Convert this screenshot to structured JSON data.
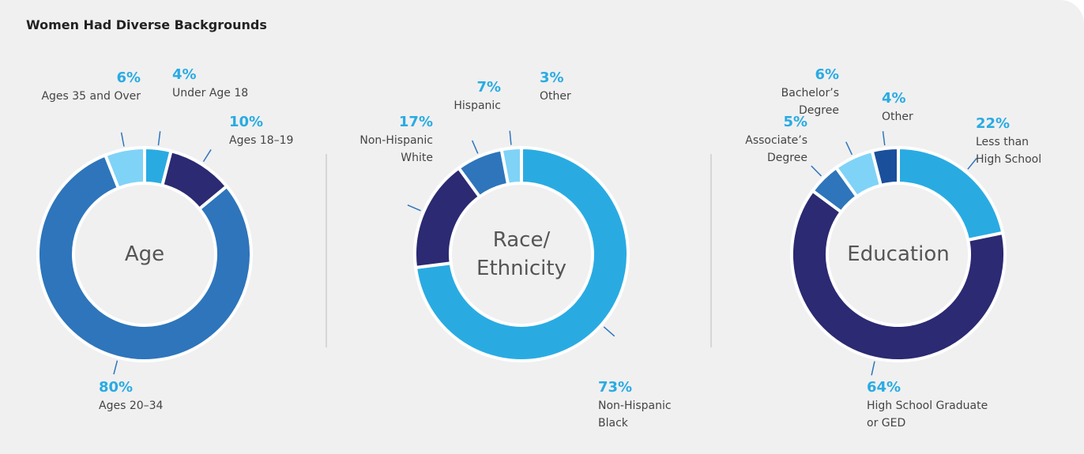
{
  "title": "Women Had Diverse Backgrounds",
  "chart_data": [
    {
      "type": "pie",
      "donut": true,
      "center_label": "Age",
      "categories": [
        "Under Age 18",
        "Ages 18–19",
        "Ages 20–34",
        "Ages 35 and Over"
      ],
      "values": [
        4,
        10,
        80,
        6
      ],
      "value_labels": [
        "4%",
        "10%",
        "80%",
        "6%"
      ],
      "colors": [
        "#29abe2",
        "#2b2a72",
        "#2e75bb",
        "#7fd3f7"
      ]
    },
    {
      "type": "pie",
      "donut": true,
      "center_label": "Race/\nEthnicity",
      "categories": [
        "Non-Hispanic\nBlack",
        "Non-Hispanic\nWhite",
        "Hispanic",
        "Other"
      ],
      "values": [
        73,
        17,
        7,
        3
      ],
      "value_labels": [
        "73%",
        "17%",
        "7%",
        "3%"
      ],
      "colors": [
        "#29abe2",
        "#2b2a72",
        "#2e75bb",
        "#7fd3f7"
      ]
    },
    {
      "type": "pie",
      "donut": true,
      "center_label": "Education",
      "categories": [
        "Less than\nHigh School",
        "High School Graduate\nor GED",
        "Associate’s\nDegree",
        "Bachelor’s\nDegree",
        "Other"
      ],
      "values": [
        22,
        64,
        5,
        6,
        4
      ],
      "value_labels": [
        "22%",
        "64%",
        "5%",
        "6%",
        "4%"
      ],
      "colors": [
        "#29abe2",
        "#2b2a72",
        "#2e75bb",
        "#7fd3f7",
        "#1a4f9c"
      ]
    }
  ]
}
